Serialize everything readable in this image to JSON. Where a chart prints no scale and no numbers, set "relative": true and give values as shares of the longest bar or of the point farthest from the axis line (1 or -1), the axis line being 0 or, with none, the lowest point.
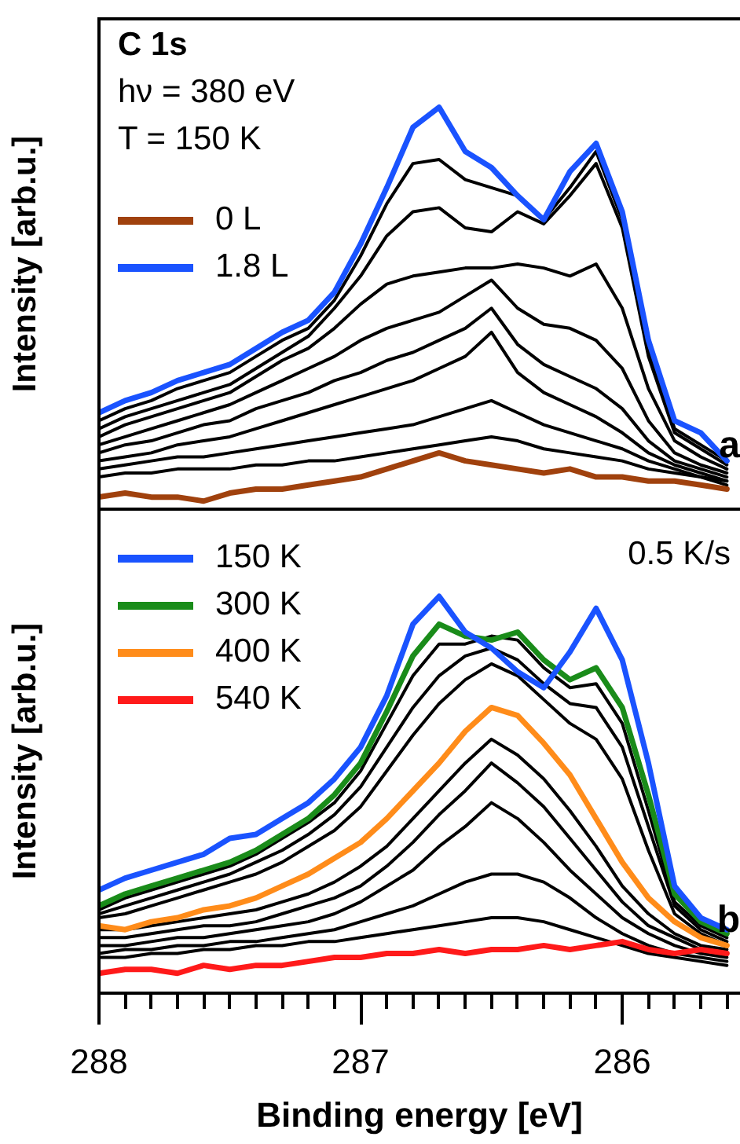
{
  "chart_data": [
    {
      "type": "line",
      "relative": true,
      "ylabel": "Intensity [arb.u.]",
      "xlim": [
        288,
        285.55
      ],
      "tick_labels": false,
      "grid": false,
      "legend": "top left",
      "marker": "none",
      "line_style": "solid",
      "annotations": [
        "C 1s",
        "hν = 380 eV",
        "T = 150 K",
        "a"
      ],
      "x": [
        288,
        287.9,
        287.8,
        287.7,
        287.6,
        287.5,
        287.4,
        287.3,
        287.2,
        287.1,
        287,
        286.9,
        286.8,
        286.7,
        286.6,
        286.5,
        286.4,
        286.3,
        286.2,
        286.1,
        286,
        285.9,
        285.8,
        285.7,
        285.6
      ],
      "series": [
        {
          "name": "0 L",
          "color": "#a0410d",
          "values": [
            0.03,
            0.04,
            0.03,
            0.03,
            0.02,
            0.04,
            0.05,
            0.05,
            0.06,
            0.07,
            0.08,
            0.1,
            0.12,
            0.14,
            0.12,
            0.11,
            0.1,
            0.09,
            0.1,
            0.08,
            0.08,
            0.07,
            0.07,
            0.06,
            0.05
          ]
        },
        {
          "name": "1.8 L",
          "color": "#1a53ff",
          "values": [
            0.24,
            0.27,
            0.29,
            0.32,
            0.34,
            0.36,
            0.4,
            0.44,
            0.47,
            0.54,
            0.66,
            0.8,
            0.95,
            1,
            0.89,
            0.85,
            0.78,
            0.72,
            0.84,
            0.91,
            0.74,
            0.42,
            0.22,
            0.19,
            0.12
          ]
        },
        {
          "color": "#000000",
          "values": [
            0.22,
            0.25,
            0.27,
            0.3,
            0.32,
            0.34,
            0.38,
            0.42,
            0.45,
            0.52,
            0.63,
            0.76,
            0.86,
            0.87,
            0.82,
            0.8,
            0.78,
            0.72,
            0.8,
            0.89,
            0.72,
            0.4,
            0.2,
            0.16,
            0.12
          ]
        },
        {
          "color": "#000000",
          "values": [
            0.2,
            0.23,
            0.25,
            0.27,
            0.29,
            0.31,
            0.35,
            0.39,
            0.43,
            0.5,
            0.58,
            0.68,
            0.74,
            0.75,
            0.7,
            0.69,
            0.74,
            0.71,
            0.78,
            0.86,
            0.7,
            0.38,
            0.19,
            0.15,
            0.11
          ]
        },
        {
          "color": "#000000",
          "values": [
            0.18,
            0.21,
            0.23,
            0.25,
            0.27,
            0.29,
            0.33,
            0.37,
            0.4,
            0.45,
            0.51,
            0.56,
            0.58,
            0.59,
            0.6,
            0.6,
            0.61,
            0.6,
            0.58,
            0.61,
            0.5,
            0.3,
            0.17,
            0.13,
            0.1
          ]
        },
        {
          "color": "#000000",
          "values": [
            0.16,
            0.18,
            0.2,
            0.22,
            0.24,
            0.26,
            0.29,
            0.32,
            0.35,
            0.38,
            0.42,
            0.45,
            0.47,
            0.49,
            0.53,
            0.57,
            0.5,
            0.46,
            0.45,
            0.42,
            0.35,
            0.22,
            0.14,
            0.11,
            0.09
          ]
        },
        {
          "color": "#000000",
          "values": [
            0.14,
            0.16,
            0.17,
            0.19,
            0.21,
            0.22,
            0.25,
            0.27,
            0.29,
            0.32,
            0.34,
            0.37,
            0.39,
            0.42,
            0.45,
            0.5,
            0.41,
            0.36,
            0.33,
            0.3,
            0.25,
            0.17,
            0.12,
            0.1,
            0.08
          ]
        },
        {
          "color": "#000000",
          "values": [
            0.12,
            0.13,
            0.14,
            0.16,
            0.17,
            0.18,
            0.2,
            0.22,
            0.24,
            0.26,
            0.28,
            0.3,
            0.32,
            0.35,
            0.38,
            0.44,
            0.34,
            0.29,
            0.26,
            0.23,
            0.19,
            0.14,
            0.11,
            0.09,
            0.07
          ]
        },
        {
          "color": "#000000",
          "values": [
            0.1,
            0.11,
            0.12,
            0.13,
            0.13,
            0.14,
            0.15,
            0.16,
            0.17,
            0.18,
            0.19,
            0.2,
            0.21,
            0.23,
            0.25,
            0.27,
            0.24,
            0.21,
            0.19,
            0.17,
            0.15,
            0.12,
            0.1,
            0.08,
            0.07
          ]
        },
        {
          "color": "#000000",
          "values": [
            0.08,
            0.09,
            0.09,
            0.1,
            0.1,
            0.1,
            0.11,
            0.11,
            0.12,
            0.12,
            0.13,
            0.14,
            0.15,
            0.16,
            0.17,
            0.18,
            0.17,
            0.15,
            0.14,
            0.13,
            0.12,
            0.1,
            0.09,
            0.08,
            0.06
          ]
        }
      ]
    },
    {
      "type": "line",
      "relative": true,
      "ylabel": "Intensity [arb.u.]",
      "xlabel": "Binding energy [eV]",
      "xlim": [
        288,
        285.55
      ],
      "tick_labels": "x",
      "grid": false,
      "legend": "top left",
      "marker": "none",
      "line_style": "solid",
      "xticks": [
        288,
        {
          "value": 287.9,
          "label": null
        },
        {
          "value": 287.8,
          "label": null
        },
        {
          "value": 287.7,
          "label": null
        },
        {
          "value": 287.6,
          "label": null
        },
        {
          "value": 287.5,
          "label": null
        },
        {
          "value": 287.4,
          "label": null
        },
        {
          "value": 287.3,
          "label": null
        },
        {
          "value": 287.2,
          "label": null
        },
        {
          "value": 287.1,
          "label": null
        },
        287,
        {
          "value": 286.9,
          "label": null
        },
        {
          "value": 286.8,
          "label": null
        },
        {
          "value": 286.7,
          "label": null
        },
        {
          "value": 286.6,
          "label": null
        },
        {
          "value": 286.5,
          "label": null
        },
        {
          "value": 286.4,
          "label": null
        },
        {
          "value": 286.3,
          "label": null
        },
        {
          "value": 286.2,
          "label": null
        },
        {
          "value": 286.1,
          "label": null
        },
        286,
        {
          "value": 285.9,
          "label": null
        },
        {
          "value": 285.8,
          "label": null
        },
        {
          "value": 285.7,
          "label": null
        },
        {
          "value": 285.6,
          "label": null
        }
      ],
      "annotations": [
        "0.5 K/s",
        "b"
      ],
      "x": [
        288,
        287.9,
        287.8,
        287.7,
        287.6,
        287.5,
        287.4,
        287.3,
        287.2,
        287.1,
        287,
        286.9,
        286.8,
        286.7,
        286.6,
        286.5,
        286.4,
        286.3,
        286.2,
        286.1,
        286,
        285.9,
        285.8,
        285.7,
        285.6
      ],
      "series": [
        {
          "name": "150 K",
          "color": "#1a53ff",
          "values": [
            0.26,
            0.29,
            0.31,
            0.33,
            0.35,
            0.39,
            0.4,
            0.44,
            0.48,
            0.54,
            0.62,
            0.75,
            0.93,
            1,
            0.91,
            0.87,
            0.81,
            0.77,
            0.86,
            0.97,
            0.84,
            0.58,
            0.27,
            0.19,
            0.16
          ]
        },
        {
          "name": "300 K",
          "color": "#1a8c1a",
          "values": [
            0.22,
            0.25,
            0.27,
            0.29,
            0.31,
            0.33,
            0.36,
            0.4,
            0.44,
            0.5,
            0.58,
            0.71,
            0.85,
            0.93,
            0.9,
            0.89,
            0.91,
            0.84,
            0.79,
            0.82,
            0.72,
            0.5,
            0.25,
            0.18,
            0.15
          ]
        },
        {
          "name": "400 K",
          "color": "#ff8c1a",
          "values": [
            0.17,
            0.16,
            0.18,
            0.19,
            0.21,
            0.22,
            0.24,
            0.27,
            0.3,
            0.34,
            0.38,
            0.44,
            0.51,
            0.58,
            0.66,
            0.72,
            0.7,
            0.63,
            0.55,
            0.44,
            0.33,
            0.24,
            0.18,
            0.14,
            0.12
          ]
        },
        {
          "name": "540 K",
          "color": "#ff1a1a",
          "values": [
            0.05,
            0.06,
            0.06,
            0.05,
            0.07,
            0.06,
            0.07,
            0.07,
            0.08,
            0.09,
            0.09,
            0.1,
            0.1,
            0.11,
            0.1,
            0.11,
            0.11,
            0.12,
            0.11,
            0.12,
            0.13,
            0.11,
            0.1,
            0.11,
            0.1
          ]
        },
        {
          "color": "#000000",
          "values": [
            0.21,
            0.24,
            0.26,
            0.28,
            0.3,
            0.32,
            0.35,
            0.39,
            0.43,
            0.48,
            0.56,
            0.68,
            0.8,
            0.88,
            0.88,
            0.9,
            0.89,
            0.82,
            0.77,
            0.78,
            0.68,
            0.46,
            0.23,
            0.17,
            0.14
          ]
        },
        {
          "color": "#000000",
          "values": [
            0.2,
            0.22,
            0.24,
            0.26,
            0.28,
            0.3,
            0.33,
            0.36,
            0.4,
            0.45,
            0.52,
            0.62,
            0.72,
            0.8,
            0.85,
            0.87,
            0.84,
            0.78,
            0.73,
            0.72,
            0.62,
            0.42,
            0.22,
            0.16,
            0.13
          ]
        },
        {
          "color": "#000000",
          "values": [
            0.19,
            0.2,
            0.22,
            0.24,
            0.26,
            0.28,
            0.3,
            0.33,
            0.37,
            0.41,
            0.47,
            0.56,
            0.65,
            0.73,
            0.79,
            0.83,
            0.8,
            0.74,
            0.68,
            0.64,
            0.54,
            0.36,
            0.2,
            0.15,
            0.12
          ]
        },
        {
          "color": "#000000",
          "values": [
            0.16,
            0.16,
            0.17,
            0.18,
            0.19,
            0.2,
            0.21,
            0.23,
            0.25,
            0.28,
            0.32,
            0.37,
            0.44,
            0.51,
            0.58,
            0.64,
            0.6,
            0.54,
            0.46,
            0.37,
            0.27,
            0.2,
            0.15,
            0.12,
            0.11
          ]
        },
        {
          "color": "#000000",
          "values": [
            0.14,
            0.14,
            0.15,
            0.16,
            0.17,
            0.17,
            0.18,
            0.2,
            0.22,
            0.24,
            0.27,
            0.32,
            0.38,
            0.45,
            0.51,
            0.58,
            0.53,
            0.47,
            0.39,
            0.31,
            0.23,
            0.17,
            0.14,
            0.11,
            0.1
          ]
        },
        {
          "color": "#000000",
          "values": [
            0.12,
            0.12,
            0.13,
            0.14,
            0.14,
            0.15,
            0.16,
            0.17,
            0.18,
            0.2,
            0.23,
            0.27,
            0.31,
            0.37,
            0.42,
            0.48,
            0.44,
            0.38,
            0.31,
            0.25,
            0.19,
            0.15,
            0.12,
            0.1,
            0.09
          ]
        },
        {
          "color": "#000000",
          "values": [
            0.1,
            0.11,
            0.11,
            0.12,
            0.12,
            0.13,
            0.13,
            0.14,
            0.15,
            0.16,
            0.18,
            0.2,
            0.22,
            0.25,
            0.28,
            0.3,
            0.3,
            0.28,
            0.24,
            0.19,
            0.15,
            0.12,
            0.1,
            0.09,
            0.08
          ]
        },
        {
          "color": "#000000",
          "values": [
            0.09,
            0.09,
            0.1,
            0.1,
            0.11,
            0.11,
            0.12,
            0.12,
            0.13,
            0.13,
            0.14,
            0.15,
            0.16,
            0.17,
            0.18,
            0.19,
            0.19,
            0.18,
            0.16,
            0.14,
            0.12,
            0.1,
            0.09,
            0.08,
            0.07
          ]
        }
      ]
    }
  ]
}
